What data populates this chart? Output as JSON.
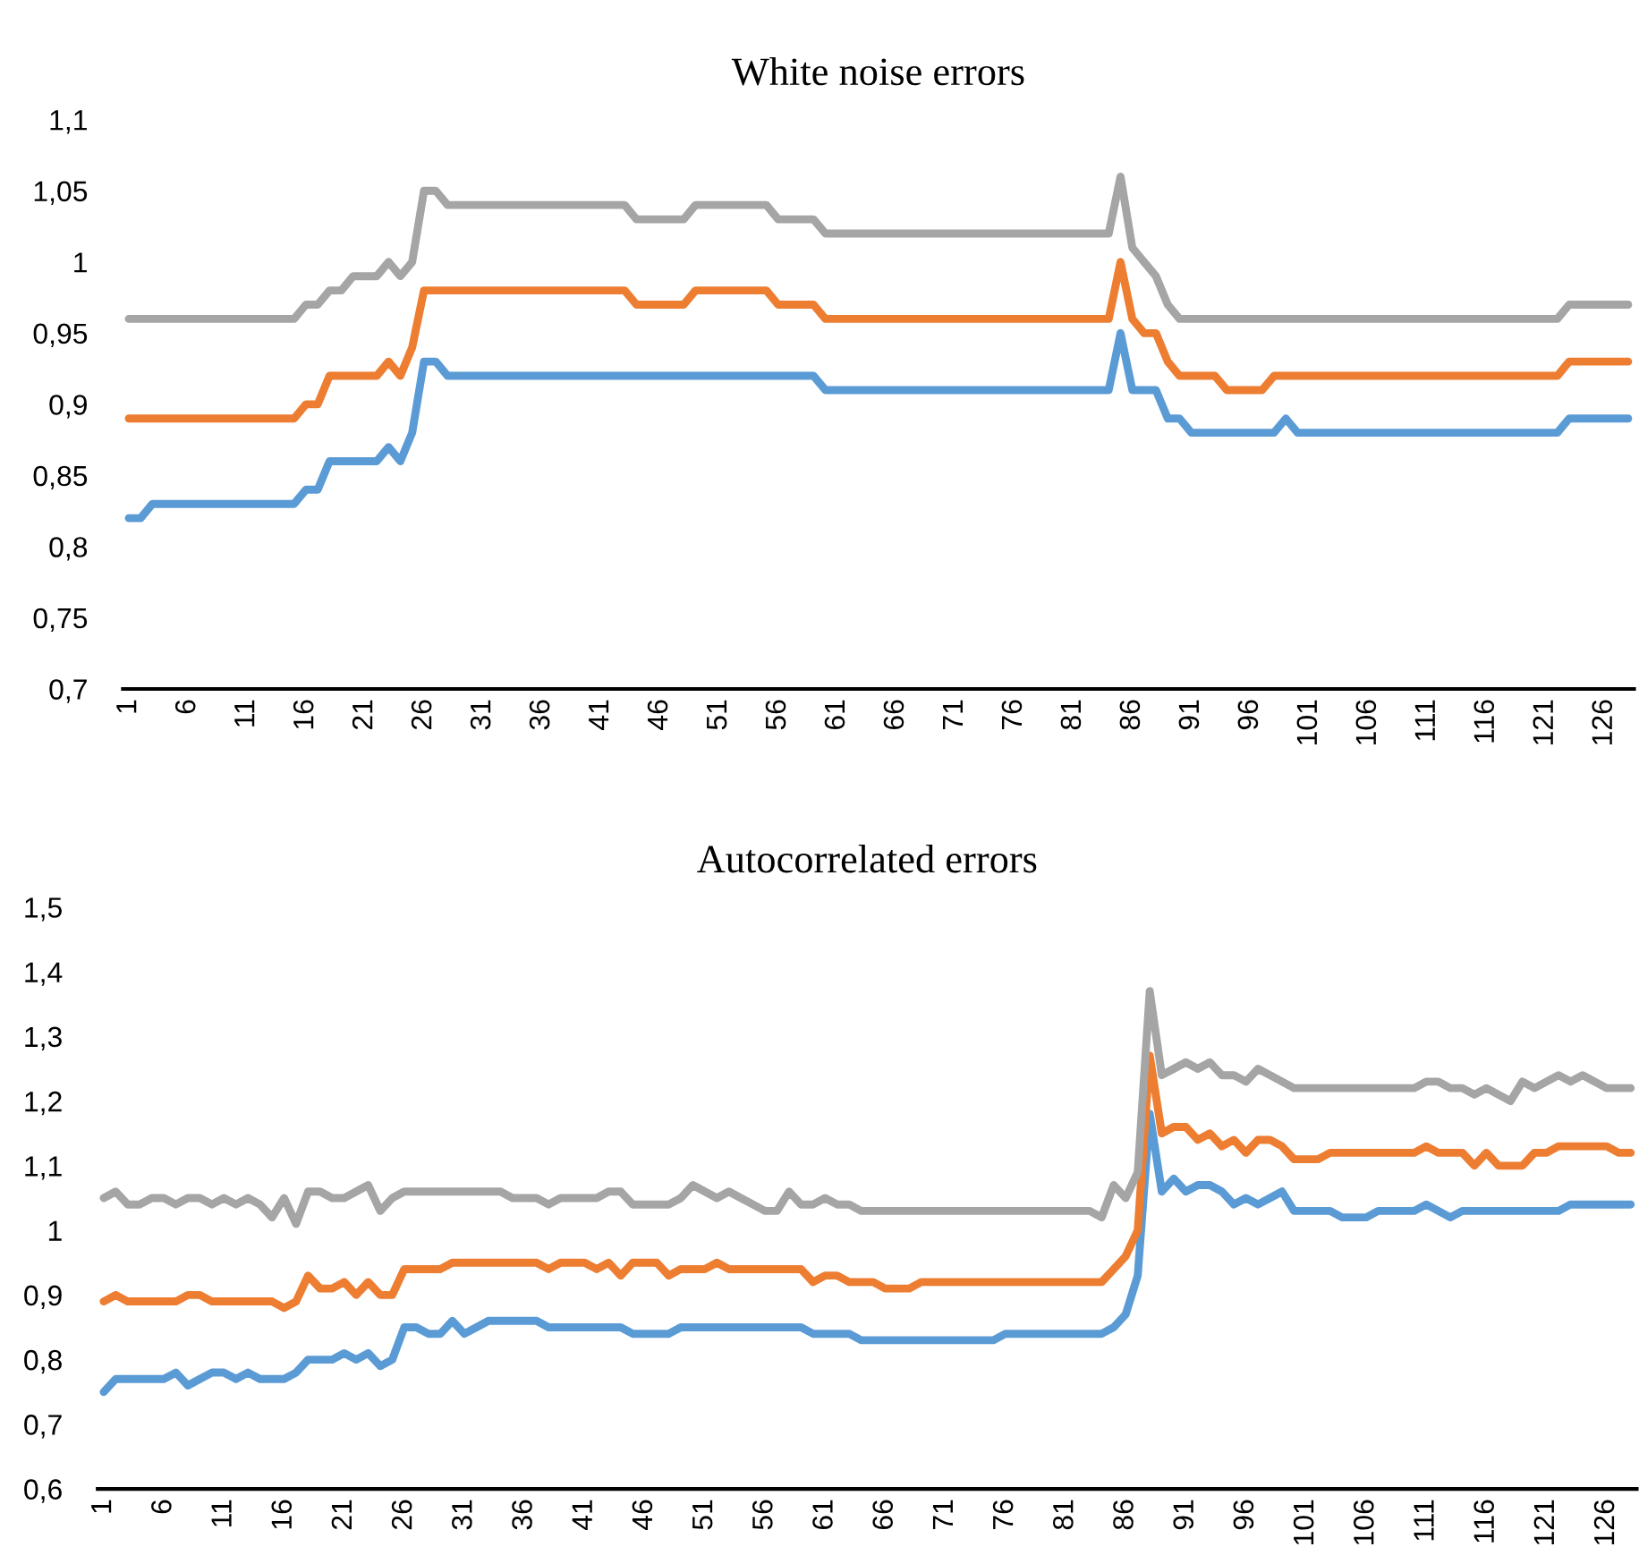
{
  "chart_data": [
    {
      "type": "line",
      "title": "White noise errors",
      "categories": [
        "1",
        null,
        null,
        null,
        null,
        "6",
        null,
        null,
        null,
        null,
        "11",
        null,
        null,
        null,
        null,
        "16",
        null,
        null,
        null,
        null,
        "21",
        null,
        null,
        null,
        null,
        "26",
        null,
        null,
        null,
        null,
        "31",
        null,
        null,
        null,
        null,
        "36",
        null,
        null,
        null,
        null,
        "41",
        null,
        null,
        null,
        null,
        "46",
        null,
        null,
        null,
        null,
        "51",
        null,
        null,
        null,
        null,
        "56",
        null,
        null,
        null,
        null,
        "61",
        null,
        null,
        null,
        null,
        "66",
        null,
        null,
        null,
        null,
        "71",
        null,
        null,
        null,
        null,
        "76",
        null,
        null,
        null,
        null,
        "81",
        null,
        null,
        null,
        null,
        "86",
        null,
        null,
        null,
        null,
        "91",
        null,
        null,
        null,
        null,
        "96",
        null,
        null,
        null,
        null,
        "101",
        null,
        null,
        null,
        null,
        "106",
        null,
        null,
        null,
        null,
        "111",
        null,
        null,
        null,
        null,
        "116",
        null,
        null,
        null,
        null,
        "121",
        null,
        null,
        null,
        null,
        "126",
        null,
        null
      ],
      "ylim": [
        0.7,
        1.1
      ],
      "yticks": [
        {
          "value": 0.7,
          "label": "0,7"
        },
        {
          "value": 0.75,
          "label": "0,75"
        },
        {
          "value": 0.8,
          "label": "0,8"
        },
        {
          "value": 0.85,
          "label": "0,85"
        },
        {
          "value": 0.9,
          "label": "0,9"
        },
        {
          "value": 0.95,
          "label": "0,95"
        },
        {
          "value": 1,
          "label": "1"
        },
        {
          "value": 1.05,
          "label": "1,05"
        },
        {
          "value": 1.1,
          "label": "1,1"
        }
      ],
      "series": [
        {
          "color": "#5b9bd5",
          "values": [
            0.82,
            0.82,
            0.83,
            0.83,
            0.83,
            0.83,
            0.83,
            0.83,
            0.83,
            0.83,
            0.83,
            0.83,
            0.83,
            0.83,
            0.83,
            0.84,
            0.84,
            0.86,
            0.86,
            0.86,
            0.86,
            0.86,
            0.87,
            0.86,
            0.88,
            0.93,
            0.93,
            0.92,
            0.92,
            0.92,
            0.92,
            0.92,
            0.92,
            0.92,
            0.92,
            0.92,
            0.92,
            0.92,
            0.92,
            0.92,
            0.92,
            0.92,
            0.92,
            0.92,
            0.92,
            0.92,
            0.92,
            0.92,
            0.92,
            0.92,
            0.92,
            0.92,
            0.92,
            0.92,
            0.92,
            0.92,
            0.92,
            0.92,
            0.92,
            0.91,
            0.91,
            0.91,
            0.91,
            0.91,
            0.91,
            0.91,
            0.91,
            0.91,
            0.91,
            0.91,
            0.91,
            0.91,
            0.91,
            0.91,
            0.91,
            0.91,
            0.91,
            0.91,
            0.91,
            0.91,
            0.91,
            0.91,
            0.91,
            0.91,
            0.95,
            0.91,
            0.91,
            0.91,
            0.89,
            0.89,
            0.88,
            0.88,
            0.88,
            0.88,
            0.88,
            0.88,
            0.88,
            0.88,
            0.89,
            0.88,
            0.88,
            0.88,
            0.88,
            0.88,
            0.88,
            0.88,
            0.88,
            0.88,
            0.88,
            0.88,
            0.88,
            0.88,
            0.88,
            0.88,
            0.88,
            0.88,
            0.88,
            0.88,
            0.88,
            0.88,
            0.88,
            0.88,
            0.89,
            0.89,
            0.89,
            0.89,
            0.89,
            0.89
          ]
        },
        {
          "color": "#ed7d31",
          "values": [
            0.89,
            0.89,
            0.89,
            0.89,
            0.89,
            0.89,
            0.89,
            0.89,
            0.89,
            0.89,
            0.89,
            0.89,
            0.89,
            0.89,
            0.89,
            0.9,
            0.9,
            0.92,
            0.92,
            0.92,
            0.92,
            0.92,
            0.93,
            0.92,
            0.94,
            0.98,
            0.98,
            0.98,
            0.98,
            0.98,
            0.98,
            0.98,
            0.98,
            0.98,
            0.98,
            0.98,
            0.98,
            0.98,
            0.98,
            0.98,
            0.98,
            0.98,
            0.98,
            0.97,
            0.97,
            0.97,
            0.97,
            0.97,
            0.98,
            0.98,
            0.98,
            0.98,
            0.98,
            0.98,
            0.98,
            0.97,
            0.97,
            0.97,
            0.97,
            0.96,
            0.96,
            0.96,
            0.96,
            0.96,
            0.96,
            0.96,
            0.96,
            0.96,
            0.96,
            0.96,
            0.96,
            0.96,
            0.96,
            0.96,
            0.96,
            0.96,
            0.96,
            0.96,
            0.96,
            0.96,
            0.96,
            0.96,
            0.96,
            0.96,
            1.0,
            0.96,
            0.95,
            0.95,
            0.93,
            0.92,
            0.92,
            0.92,
            0.92,
            0.91,
            0.91,
            0.91,
            0.91,
            0.92,
            0.92,
            0.92,
            0.92,
            0.92,
            0.92,
            0.92,
            0.92,
            0.92,
            0.92,
            0.92,
            0.92,
            0.92,
            0.92,
            0.92,
            0.92,
            0.92,
            0.92,
            0.92,
            0.92,
            0.92,
            0.92,
            0.92,
            0.92,
            0.92,
            0.93,
            0.93,
            0.93,
            0.93,
            0.93,
            0.93
          ]
        },
        {
          "color": "#a5a5a5",
          "values": [
            0.96,
            0.96,
            0.96,
            0.96,
            0.96,
            0.96,
            0.96,
            0.96,
            0.96,
            0.96,
            0.96,
            0.96,
            0.96,
            0.96,
            0.96,
            0.97,
            0.97,
            0.98,
            0.98,
            0.99,
            0.99,
            0.99,
            1.0,
            0.99,
            1.0,
            1.05,
            1.05,
            1.04,
            1.04,
            1.04,
            1.04,
            1.04,
            1.04,
            1.04,
            1.04,
            1.04,
            1.04,
            1.04,
            1.04,
            1.04,
            1.04,
            1.04,
            1.04,
            1.03,
            1.03,
            1.03,
            1.03,
            1.03,
            1.04,
            1.04,
            1.04,
            1.04,
            1.04,
            1.04,
            1.04,
            1.03,
            1.03,
            1.03,
            1.03,
            1.02,
            1.02,
            1.02,
            1.02,
            1.02,
            1.02,
            1.02,
            1.02,
            1.02,
            1.02,
            1.02,
            1.02,
            1.02,
            1.02,
            1.02,
            1.02,
            1.02,
            1.02,
            1.02,
            1.02,
            1.02,
            1.02,
            1.02,
            1.02,
            1.02,
            1.06,
            1.01,
            1.0,
            0.99,
            0.97,
            0.96,
            0.96,
            0.96,
            0.96,
            0.96,
            0.96,
            0.96,
            0.96,
            0.96,
            0.96,
            0.96,
            0.96,
            0.96,
            0.96,
            0.96,
            0.96,
            0.96,
            0.96,
            0.96,
            0.96,
            0.96,
            0.96,
            0.96,
            0.96,
            0.96,
            0.96,
            0.96,
            0.96,
            0.96,
            0.96,
            0.96,
            0.96,
            0.96,
            0.97,
            0.97,
            0.97,
            0.97,
            0.97,
            0.97
          ]
        }
      ]
    },
    {
      "type": "line",
      "title": "Autocorrelated errors",
      "categories": [
        "1",
        null,
        null,
        null,
        null,
        "6",
        null,
        null,
        null,
        null,
        "11",
        null,
        null,
        null,
        null,
        "16",
        null,
        null,
        null,
        null,
        "21",
        null,
        null,
        null,
        null,
        "26",
        null,
        null,
        null,
        null,
        "31",
        null,
        null,
        null,
        null,
        "36",
        null,
        null,
        null,
        null,
        "41",
        null,
        null,
        null,
        null,
        "46",
        null,
        null,
        null,
        null,
        "51",
        null,
        null,
        null,
        null,
        "56",
        null,
        null,
        null,
        null,
        "61",
        null,
        null,
        null,
        null,
        "66",
        null,
        null,
        null,
        null,
        "71",
        null,
        null,
        null,
        null,
        "76",
        null,
        null,
        null,
        null,
        "81",
        null,
        null,
        null,
        null,
        "86",
        null,
        null,
        null,
        null,
        "91",
        null,
        null,
        null,
        null,
        "96",
        null,
        null,
        null,
        null,
        "101",
        null,
        null,
        null,
        null,
        "106",
        null,
        null,
        null,
        null,
        "111",
        null,
        null,
        null,
        null,
        "116",
        null,
        null,
        null,
        null,
        "121",
        null,
        null,
        null,
        null,
        "126",
        null,
        null
      ],
      "ylim": [
        0.6,
        1.5
      ],
      "yticks": [
        {
          "value": 0.6,
          "label": "0,6"
        },
        {
          "value": 0.7,
          "label": "0,7"
        },
        {
          "value": 0.8,
          "label": "0,8"
        },
        {
          "value": 0.9,
          "label": "0,9"
        },
        {
          "value": 1,
          "label": "1"
        },
        {
          "value": 1.1,
          "label": "1,1"
        },
        {
          "value": 1.2,
          "label": "1,2"
        },
        {
          "value": 1.3,
          "label": "1,3"
        },
        {
          "value": 1.4,
          "label": "1,4"
        },
        {
          "value": 1.5,
          "label": "1,5"
        }
      ],
      "series": [
        {
          "color": "#5b9bd5",
          "values": [
            0.75,
            0.77,
            0.77,
            0.77,
            0.77,
            0.77,
            0.78,
            0.76,
            0.77,
            0.78,
            0.78,
            0.77,
            0.78,
            0.77,
            0.77,
            0.77,
            0.78,
            0.8,
            0.8,
            0.8,
            0.81,
            0.8,
            0.81,
            0.79,
            0.8,
            0.85,
            0.85,
            0.84,
            0.84,
            0.86,
            0.84,
            0.85,
            0.86,
            0.86,
            0.86,
            0.86,
            0.86,
            0.85,
            0.85,
            0.85,
            0.85,
            0.85,
            0.85,
            0.85,
            0.84,
            0.84,
            0.84,
            0.84,
            0.85,
            0.85,
            0.85,
            0.85,
            0.85,
            0.85,
            0.85,
            0.85,
            0.85,
            0.85,
            0.85,
            0.84,
            0.84,
            0.84,
            0.84,
            0.83,
            0.83,
            0.83,
            0.83,
            0.83,
            0.83,
            0.83,
            0.83,
            0.83,
            0.83,
            0.83,
            0.83,
            0.84,
            0.84,
            0.84,
            0.84,
            0.84,
            0.84,
            0.84,
            0.84,
            0.84,
            0.85,
            0.87,
            0.93,
            1.18,
            1.06,
            1.08,
            1.06,
            1.07,
            1.07,
            1.06,
            1.04,
            1.05,
            1.04,
            1.05,
            1.06,
            1.03,
            1.03,
            1.03,
            1.03,
            1.02,
            1.02,
            1.02,
            1.03,
            1.03,
            1.03,
            1.03,
            1.04,
            1.03,
            1.02,
            1.03,
            1.03,
            1.03,
            1.03,
            1.03,
            1.03,
            1.03,
            1.03,
            1.03,
            1.04,
            1.04,
            1.04,
            1.04,
            1.04,
            1.04
          ]
        },
        {
          "color": "#ed7d31",
          "values": [
            0.89,
            0.9,
            0.89,
            0.89,
            0.89,
            0.89,
            0.89,
            0.9,
            0.9,
            0.89,
            0.89,
            0.89,
            0.89,
            0.89,
            0.89,
            0.88,
            0.89,
            0.93,
            0.91,
            0.91,
            0.92,
            0.9,
            0.92,
            0.9,
            0.9,
            0.94,
            0.94,
            0.94,
            0.94,
            0.95,
            0.95,
            0.95,
            0.95,
            0.95,
            0.95,
            0.95,
            0.95,
            0.94,
            0.95,
            0.95,
            0.95,
            0.94,
            0.95,
            0.93,
            0.95,
            0.95,
            0.95,
            0.93,
            0.94,
            0.94,
            0.94,
            0.95,
            0.94,
            0.94,
            0.94,
            0.94,
            0.94,
            0.94,
            0.94,
            0.92,
            0.93,
            0.93,
            0.92,
            0.92,
            0.92,
            0.91,
            0.91,
            0.91,
            0.92,
            0.92,
            0.92,
            0.92,
            0.92,
            0.92,
            0.92,
            0.92,
            0.92,
            0.92,
            0.92,
            0.92,
            0.92,
            0.92,
            0.92,
            0.92,
            0.94,
            0.96,
            1.0,
            1.27,
            1.15,
            1.16,
            1.16,
            1.14,
            1.15,
            1.13,
            1.14,
            1.12,
            1.14,
            1.14,
            1.13,
            1.11,
            1.11,
            1.11,
            1.12,
            1.12,
            1.12,
            1.12,
            1.12,
            1.12,
            1.12,
            1.12,
            1.13,
            1.12,
            1.12,
            1.12,
            1.1,
            1.12,
            1.1,
            1.1,
            1.1,
            1.12,
            1.12,
            1.13,
            1.13,
            1.13,
            1.13,
            1.13,
            1.12,
            1.12
          ]
        },
        {
          "color": "#a5a5a5",
          "values": [
            1.05,
            1.06,
            1.04,
            1.04,
            1.05,
            1.05,
            1.04,
            1.05,
            1.05,
            1.04,
            1.05,
            1.04,
            1.05,
            1.04,
            1.02,
            1.05,
            1.01,
            1.06,
            1.06,
            1.05,
            1.05,
            1.06,
            1.07,
            1.03,
            1.05,
            1.06,
            1.06,
            1.06,
            1.06,
            1.06,
            1.06,
            1.06,
            1.06,
            1.06,
            1.05,
            1.05,
            1.05,
            1.04,
            1.05,
            1.05,
            1.05,
            1.05,
            1.06,
            1.06,
            1.04,
            1.04,
            1.04,
            1.04,
            1.05,
            1.07,
            1.06,
            1.05,
            1.06,
            1.05,
            1.04,
            1.03,
            1.03,
            1.06,
            1.04,
            1.04,
            1.05,
            1.04,
            1.04,
            1.03,
            1.03,
            1.03,
            1.03,
            1.03,
            1.03,
            1.03,
            1.03,
            1.03,
            1.03,
            1.03,
            1.03,
            1.03,
            1.03,
            1.03,
            1.03,
            1.03,
            1.03,
            1.03,
            1.03,
            1.02,
            1.07,
            1.05,
            1.09,
            1.37,
            1.24,
            1.25,
            1.26,
            1.25,
            1.26,
            1.24,
            1.24,
            1.23,
            1.25,
            1.24,
            1.23,
            1.22,
            1.22,
            1.22,
            1.22,
            1.22,
            1.22,
            1.22,
            1.22,
            1.22,
            1.22,
            1.22,
            1.23,
            1.23,
            1.22,
            1.22,
            1.21,
            1.22,
            1.21,
            1.2,
            1.23,
            1.22,
            1.23,
            1.24,
            1.23,
            1.24,
            1.23,
            1.22,
            1.22,
            1.22
          ]
        }
      ]
    }
  ]
}
